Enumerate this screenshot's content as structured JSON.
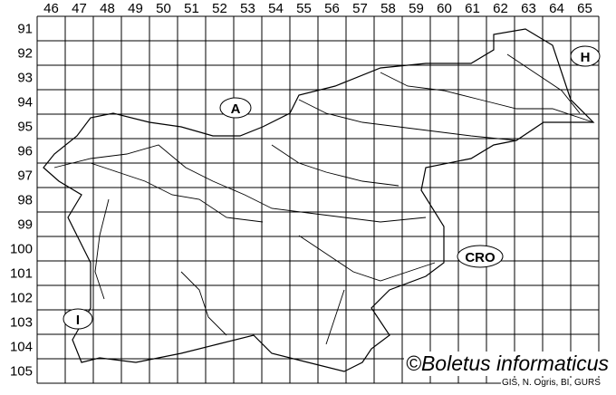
{
  "map": {
    "columns": [
      "46",
      "47",
      "48",
      "49",
      "50",
      "51",
      "52",
      "53",
      "54",
      "55",
      "56",
      "57",
      "58",
      "59",
      "60",
      "61",
      "62",
      "63",
      "64",
      "65"
    ],
    "rows": [
      "91",
      "92",
      "93",
      "94",
      "95",
      "96",
      "97",
      "98",
      "99",
      "100",
      "101",
      "102",
      "103",
      "104",
      "105"
    ],
    "neighbors": [
      {
        "code": "A"
      },
      {
        "code": "H"
      },
      {
        "code": "I"
      },
      {
        "code": "CRO"
      }
    ],
    "line_color": "#000000",
    "copyright": "©Boletus informaticus",
    "credits": "GIS, N. Ogris, BI, GURS"
  }
}
